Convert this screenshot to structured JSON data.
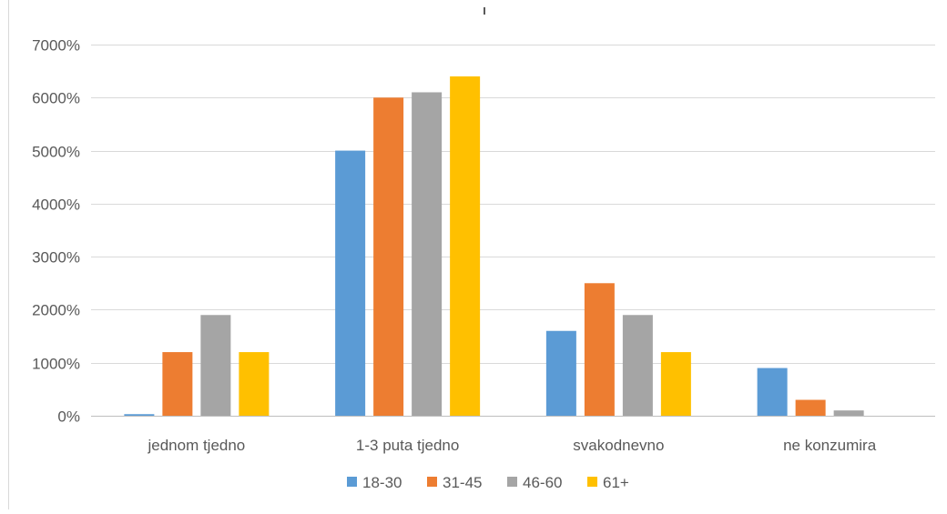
{
  "chart_data": {
    "type": "bar",
    "title": "",
    "xlabel": "",
    "ylabel": "",
    "categories": [
      "jednom tjedno",
      "1-3 puta tjedno",
      "svakodnevno",
      "ne konzumira"
    ],
    "series": [
      {
        "name": "18-30",
        "color": "#5B9BD5",
        "values": [
          30,
          5000,
          1600,
          900
        ]
      },
      {
        "name": "31-45",
        "color": "#ED7D31",
        "values": [
          1200,
          6000,
          2500,
          300
        ]
      },
      {
        "name": "46-60",
        "color": "#A5A5A5",
        "values": [
          1900,
          6100,
          1900,
          100
        ]
      },
      {
        "name": "61+",
        "color": "#FFC000",
        "values": [
          1200,
          6400,
          1200,
          0
        ]
      }
    ],
    "ylim": [
      0,
      7000
    ],
    "yticks": [
      0,
      1000,
      2000,
      3000,
      4000,
      5000,
      6000,
      7000
    ],
    "ytick_labels": [
      "0%",
      "1000%",
      "2000%",
      "3000%",
      "4000%",
      "5000%",
      "6000%",
      "7000%"
    ],
    "grid": true,
    "legend_position": "bottom"
  }
}
